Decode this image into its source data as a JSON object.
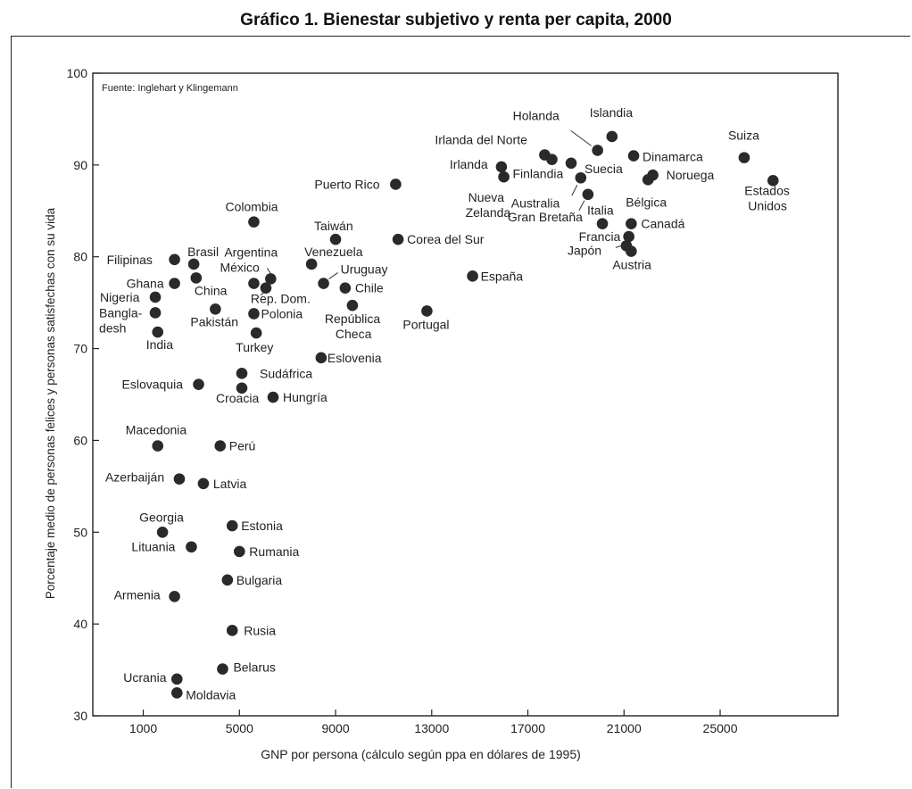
{
  "page_title": "Gráfico 1. Bienestar subjetivo y renta per capita, 2000",
  "chart_data": {
    "type": "scatter",
    "title": "Gráfico 1. Bienestar subjetivo y renta per capita, 2000",
    "source_note": "Fuente: Inglehart y Klingemann",
    "xlabel": "GNP por persona (cálculo según ppa en dólares de 1995)",
    "ylabel": "Porcentaje medio de personas felices y personas satisfechas con su vida",
    "xlim": [
      -1100,
      29900
    ],
    "ylim": [
      30,
      100
    ],
    "x_ticks": [
      1000,
      5000,
      9000,
      13000,
      17000,
      21000,
      25000
    ],
    "y_ticks": [
      30,
      40,
      50,
      60,
      70,
      80,
      90,
      100
    ],
    "grid": false,
    "points": [
      {
        "label": "Suiza",
        "x": 26000,
        "y": 90.8
      },
      {
        "label": "Estados Unidos",
        "x": 27200,
        "y": 88.3
      },
      {
        "label": "Islandia",
        "x": 20500,
        "y": 93.1
      },
      {
        "label": "Holanda",
        "x": 19900,
        "y": 91.6
      },
      {
        "label": "Dinamarca",
        "x": 21400,
        "y": 91.0
      },
      {
        "label": "Noruega",
        "x": 22200,
        "y": 88.9
      },
      {
        "label": "Bélgica",
        "x": 22000,
        "y": 88.4
      },
      {
        "label": "Suecia",
        "x": 18800,
        "y": 90.2
      },
      {
        "label": "Irlanda del Norte",
        "x": 17700,
        "y": 91.1
      },
      {
        "label": "Finlandia",
        "x": 18000,
        "y": 90.6
      },
      {
        "label": "Irlanda",
        "x": 15900,
        "y": 89.8
      },
      {
        "label": "Nueva Zelanda",
        "x": 16000,
        "y": 88.7
      },
      {
        "label": "Australia",
        "x": 19200,
        "y": 88.6
      },
      {
        "label": "Gran Bretaña",
        "x": 19500,
        "y": 86.8
      },
      {
        "label": "Italia",
        "x": 20100,
        "y": 83.6
      },
      {
        "label": "Canadá",
        "x": 21300,
        "y": 83.6
      },
      {
        "label": "Francia",
        "x": 21200,
        "y": 82.2
      },
      {
        "label": "Japón",
        "x": 21100,
        "y": 81.2
      },
      {
        "label": "Austria",
        "x": 21300,
        "y": 80.6
      },
      {
        "label": "Puerto Rico",
        "x": 11500,
        "y": 87.9
      },
      {
        "label": "Corea del Sur",
        "x": 11600,
        "y": 81.9
      },
      {
        "label": "España",
        "x": 14700,
        "y": 77.9
      },
      {
        "label": "Portugal",
        "x": 12800,
        "y": 74.1
      },
      {
        "label": "Taiwán",
        "x": 9000,
        "y": 81.9
      },
      {
        "label": "Venezuela",
        "x": 8000,
        "y": 79.2
      },
      {
        "label": "Uruguay",
        "x": 8500,
        "y": 77.1
      },
      {
        "label": "Chile",
        "x": 9400,
        "y": 76.6
      },
      {
        "label": "República Checa",
        "x": 9700,
        "y": 74.7
      },
      {
        "label": "Eslovenia",
        "x": 8400,
        "y": 69.0
      },
      {
        "label": "Colombia",
        "x": 5600,
        "y": 83.8
      },
      {
        "label": "Argentina",
        "x": 6300,
        "y": 77.6
      },
      {
        "label": "México",
        "x": 5600,
        "y": 77.1
      },
      {
        "label": "Rep. Dom.",
        "x": 6100,
        "y": 76.6
      },
      {
        "label": "Polonia",
        "x": 5600,
        "y": 73.8
      },
      {
        "label": "Turkey",
        "x": 5700,
        "y": 71.7
      },
      {
        "label": "Sudáfrica",
        "x": 5100,
        "y": 67.3
      },
      {
        "label": "Croacia",
        "x": 5100,
        "y": 65.7
      },
      {
        "label": "Hungría",
        "x": 6400,
        "y": 64.7
      },
      {
        "label": "Brasil",
        "x": 3100,
        "y": 79.2
      },
      {
        "label": "Filipinas",
        "x": 2300,
        "y": 79.7
      },
      {
        "label": "Ghana",
        "x": 2300,
        "y": 77.1
      },
      {
        "label": "China",
        "x": 3200,
        "y": 77.7
      },
      {
        "label": "Nigeria",
        "x": 1500,
        "y": 75.6
      },
      {
        "label": "Bangladesh",
        "x": 1500,
        "y": 73.9
      },
      {
        "label": "India",
        "x": 1600,
        "y": 71.8
      },
      {
        "label": "Pakistán",
        "x": 4000,
        "y": 74.3
      },
      {
        "label": "Eslovaquia",
        "x": 3300,
        "y": 66.1
      },
      {
        "label": "Macedonia",
        "x": 1600,
        "y": 59.4
      },
      {
        "label": "Perú",
        "x": 4200,
        "y": 59.4
      },
      {
        "label": "Azerbaiján",
        "x": 2500,
        "y": 55.8
      },
      {
        "label": "Latvia",
        "x": 3500,
        "y": 55.3
      },
      {
        "label": "Georgia",
        "x": 1800,
        "y": 50.0
      },
      {
        "label": "Lituania",
        "x": 3000,
        "y": 48.4
      },
      {
        "label": "Estonia",
        "x": 4700,
        "y": 50.7
      },
      {
        "label": "Rumania",
        "x": 5000,
        "y": 47.9
      },
      {
        "label": "Bulgaria",
        "x": 4500,
        "y": 44.8
      },
      {
        "label": "Armenia",
        "x": 2300,
        "y": 43.0
      },
      {
        "label": "Rusia",
        "x": 4700,
        "y": 39.3
      },
      {
        "label": "Belarus",
        "x": 4300,
        "y": 35.1
      },
      {
        "label": "Ucrania",
        "x": 2400,
        "y": 34.0
      },
      {
        "label": "Moldavia",
        "x": 2400,
        "y": 32.5
      }
    ]
  }
}
